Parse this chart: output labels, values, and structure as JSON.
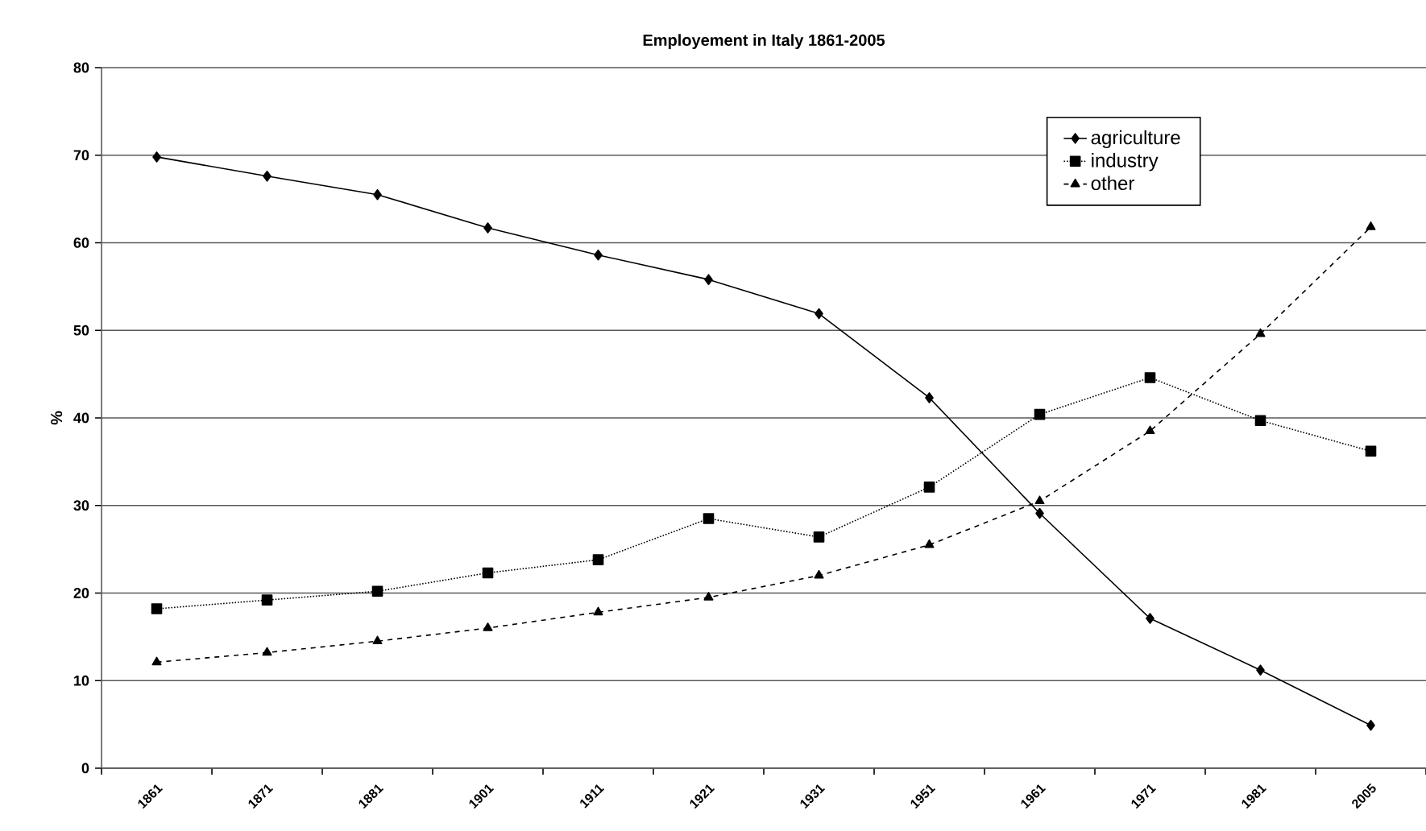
{
  "chart_data": {
    "type": "line",
    "title": "Employement in Italy 1861-2005",
    "ylabel": "%",
    "categories": [
      "1861",
      "1871",
      "1881",
      "1901",
      "1911",
      "1921",
      "1931",
      "1951",
      "1961",
      "1971",
      "1981",
      "2005"
    ],
    "series": [
      {
        "name": "agriculture",
        "color": "#000000",
        "marker": "diamond",
        "line_style": "solid",
        "values": [
          69.8,
          67.6,
          65.5,
          61.7,
          58.6,
          55.8,
          51.9,
          42.3,
          29.1,
          17.1,
          11.2,
          4.9
        ]
      },
      {
        "name": "industry",
        "color": "#000000",
        "marker": "square",
        "line_style": "dotted",
        "values": [
          18.2,
          19.2,
          20.2,
          22.3,
          23.8,
          28.5,
          26.4,
          32.1,
          40.4,
          44.6,
          39.7,
          36.2
        ]
      },
      {
        "name": "other",
        "color": "#000000",
        "marker": "triangle",
        "line_style": "dashed",
        "values": [
          12.1,
          13.2,
          14.5,
          16.0,
          17.8,
          19.5,
          22.0,
          25.5,
          30.5,
          38.5,
          49.6,
          61.8
        ]
      }
    ],
    "ylim": [
      0,
      80
    ],
    "yticks": [
      0,
      10,
      20,
      30,
      40,
      50,
      60,
      70,
      80
    ],
    "grid": "y",
    "legend": "top right"
  }
}
